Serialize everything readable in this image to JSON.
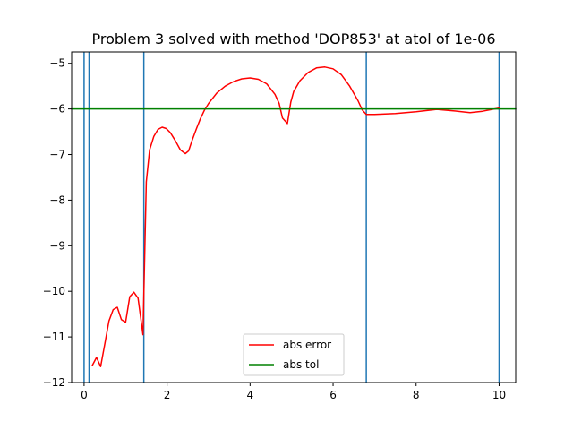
{
  "chart_data": {
    "type": "line",
    "title": "Problem 3 solved with method 'DOP853' at atol of 1e-06",
    "xlabel": "",
    "ylabel": "",
    "xlim": [
      -0.3,
      10.4
    ],
    "ylim": [
      -12,
      -4.75
    ],
    "x_ticks": [
      0,
      2,
      4,
      6,
      8,
      10
    ],
    "x_tick_labels": [
      "0",
      "2",
      "4",
      "6",
      "8",
      "10"
    ],
    "y_ticks": [
      -12,
      -11,
      -10,
      -9,
      -8,
      -7,
      -6,
      -5
    ],
    "y_tick_labels": [
      "−12",
      "−11",
      "−10",
      "−9",
      "−8",
      "−7",
      "−6",
      "−5"
    ],
    "grid": false,
    "legend_position": "lower center",
    "series": [
      {
        "name": "abs error",
        "color": "#ff0000",
        "x": [
          0.2,
          0.3,
          0.4,
          0.5,
          0.6,
          0.7,
          0.8,
          0.9,
          1.0,
          1.1,
          1.2,
          1.3,
          1.42,
          1.5,
          1.58,
          1.68,
          1.78,
          1.88,
          1.98,
          2.08,
          2.2,
          2.32,
          2.44,
          2.52,
          2.6,
          2.7,
          2.8,
          2.9,
          3.0,
          3.2,
          3.4,
          3.6,
          3.8,
          4.0,
          4.2,
          4.4,
          4.6,
          4.7,
          4.78,
          4.9,
          4.98,
          5.05,
          5.2,
          5.4,
          5.6,
          5.8,
          6.0,
          6.2,
          6.4,
          6.6,
          6.7,
          6.8,
          7.0,
          7.5,
          8.0,
          8.5,
          9.0,
          9.3,
          9.6,
          10.0
        ],
        "y": [
          -11.62,
          -11.45,
          -11.65,
          -11.15,
          -10.65,
          -10.4,
          -10.35,
          -10.62,
          -10.68,
          -10.12,
          -10.02,
          -10.15,
          -10.95,
          -7.6,
          -6.9,
          -6.6,
          -6.45,
          -6.4,
          -6.43,
          -6.52,
          -6.7,
          -6.9,
          -6.98,
          -6.92,
          -6.7,
          -6.45,
          -6.22,
          -6.03,
          -5.88,
          -5.65,
          -5.5,
          -5.4,
          -5.34,
          -5.32,
          -5.35,
          -5.45,
          -5.68,
          -5.88,
          -6.2,
          -6.32,
          -5.85,
          -5.62,
          -5.38,
          -5.2,
          -5.1,
          -5.08,
          -5.12,
          -5.25,
          -5.5,
          -5.82,
          -6.02,
          -6.12,
          -6.12,
          -6.1,
          -6.06,
          -6.01,
          -6.05,
          -6.08,
          -6.05,
          -5.98
        ]
      },
      {
        "name": "abs tol",
        "color": "#008000",
        "x": [
          -0.3,
          10.4
        ],
        "y": [
          -6,
          -6
        ]
      }
    ],
    "vertical_lines": {
      "color": "#1f77b4",
      "x": [
        0.0,
        0.12,
        1.44,
        6.8,
        10.0
      ]
    }
  }
}
